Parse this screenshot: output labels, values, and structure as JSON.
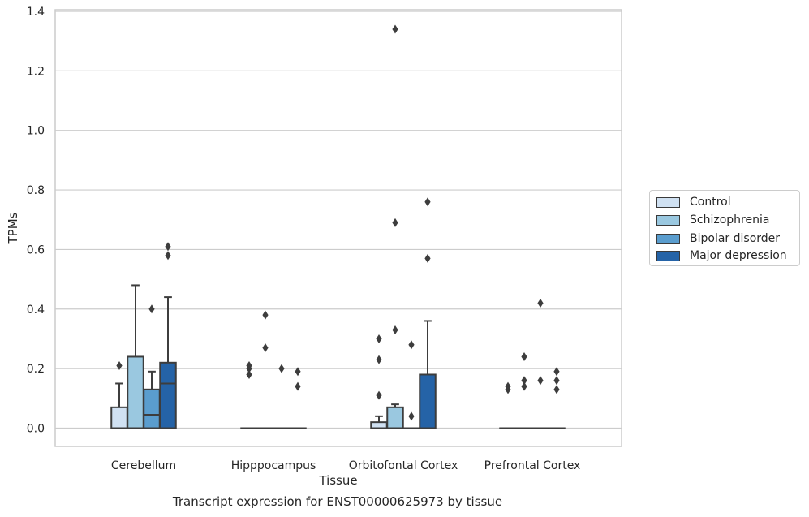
{
  "chart_data": {
    "type": "box",
    "xlabel": "Tissue",
    "ylabel": "TPMs",
    "categories": [
      "Cerebellum",
      "Hipppocampus",
      "Orbitofontal Cortex",
      "Prefrontal Cortex"
    ],
    "ylim": [
      -0.06,
      1.41
    ],
    "yticks": [
      0.0,
      0.2,
      0.4,
      0.6,
      0.8,
      1.0,
      1.2,
      1.4
    ],
    "ytick_labels": [
      "0.0",
      "0.2",
      "0.4",
      "0.6",
      "0.8",
      "1.0",
      "1.2",
      "1.4"
    ],
    "grid": true,
    "legend_position": "right",
    "series": [
      {
        "name": "Control",
        "color": "#d0e1f2",
        "boxes": [
          {
            "q1": 0.0,
            "median": 0.0,
            "q3": 0.07,
            "whisker_low": 0.0,
            "whisker_high": 0.15,
            "outliers": [
              0.21
            ]
          },
          {
            "q1": 0.0,
            "median": 0.0,
            "q3": 0.0,
            "whisker_low": 0.0,
            "whisker_high": 0.0,
            "outliers": [
              0.18,
              0.2,
              0.21
            ]
          },
          {
            "q1": 0.0,
            "median": 0.0,
            "q3": 0.02,
            "whisker_low": 0.0,
            "whisker_high": 0.04,
            "outliers": [
              0.11,
              0.23,
              0.3
            ]
          },
          {
            "q1": 0.0,
            "median": 0.0,
            "q3": 0.0,
            "whisker_low": 0.0,
            "whisker_high": 0.0,
            "outliers": [
              0.13,
              0.14
            ]
          }
        ]
      },
      {
        "name": "Schizophrenia",
        "color": "#9ac8e0",
        "boxes": [
          {
            "q1": 0.0,
            "median": 0.0,
            "q3": 0.24,
            "whisker_low": 0.0,
            "whisker_high": 0.48,
            "outliers": []
          },
          {
            "q1": 0.0,
            "median": 0.0,
            "q3": 0.0,
            "whisker_low": 0.0,
            "whisker_high": 0.0,
            "outliers": [
              0.27,
              0.38
            ]
          },
          {
            "q1": 0.0,
            "median": 0.0,
            "q3": 0.07,
            "whisker_low": 0.0,
            "whisker_high": 0.08,
            "outliers": [
              0.33,
              0.69,
              1.34
            ]
          },
          {
            "q1": 0.0,
            "median": 0.0,
            "q3": 0.0,
            "whisker_low": 0.0,
            "whisker_high": 0.0,
            "outliers": [
              0.14,
              0.16,
              0.24
            ]
          }
        ]
      },
      {
        "name": "Bipolar disorder",
        "color": "#5a9dce",
        "boxes": [
          {
            "q1": 0.0,
            "median": 0.045,
            "q3": 0.13,
            "whisker_low": 0.0,
            "whisker_high": 0.19,
            "outliers": [
              0.4
            ]
          },
          {
            "q1": 0.0,
            "median": 0.0,
            "q3": 0.0,
            "whisker_low": 0.0,
            "whisker_high": 0.0,
            "outliers": [
              0.2
            ]
          },
          {
            "q1": 0.0,
            "median": 0.0,
            "q3": 0.0,
            "whisker_low": 0.0,
            "whisker_high": 0.0,
            "outliers": [
              0.04,
              0.28
            ]
          },
          {
            "q1": 0.0,
            "median": 0.0,
            "q3": 0.0,
            "whisker_low": 0.0,
            "whisker_high": 0.0,
            "outliers": [
              0.16,
              0.42
            ]
          }
        ]
      },
      {
        "name": "Major depression",
        "color": "#2563a7",
        "boxes": [
          {
            "q1": 0.0,
            "median": 0.15,
            "q3": 0.22,
            "whisker_low": 0.0,
            "whisker_high": 0.44,
            "outliers": [
              0.58,
              0.61
            ]
          },
          {
            "q1": 0.0,
            "median": 0.0,
            "q3": 0.0,
            "whisker_low": 0.0,
            "whisker_high": 0.0,
            "outliers": [
              0.14,
              0.19
            ]
          },
          {
            "q1": 0.0,
            "median": 0.0,
            "q3": 0.18,
            "whisker_low": 0.0,
            "whisker_high": 0.36,
            "outliers": [
              0.57,
              0.76
            ]
          },
          {
            "q1": 0.0,
            "median": 0.0,
            "q3": 0.0,
            "whisker_low": 0.0,
            "whisker_high": 0.0,
            "outliers": [
              0.13,
              0.16,
              0.19
            ]
          }
        ]
      }
    ]
  },
  "caption": "Transcript expression for ENST00000625973 by tissue"
}
